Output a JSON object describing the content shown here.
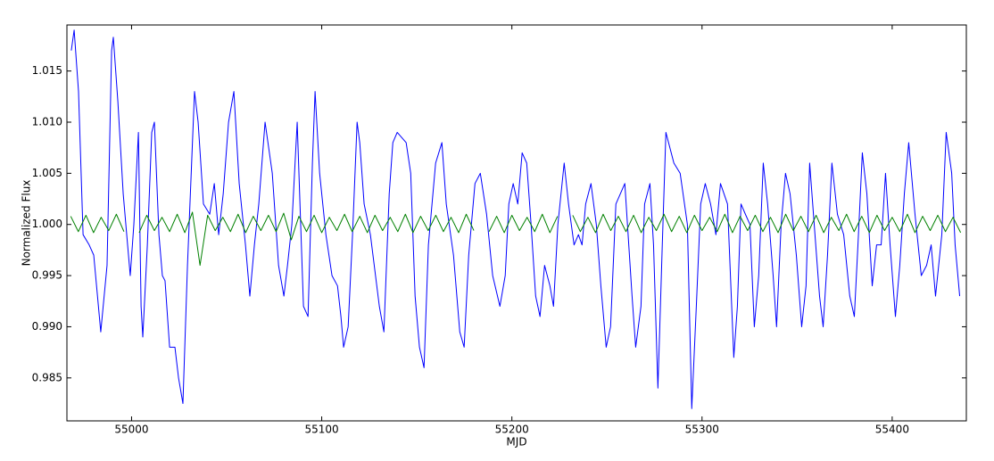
{
  "chart_data": {
    "type": "line",
    "xlabel": "MJD",
    "ylabel": "Normalized Flux",
    "xlim": [
      54966,
      55439
    ],
    "ylim": [
      0.9808,
      1.0195
    ],
    "xticks": [
      55000,
      55100,
      55200,
      55300,
      55400
    ],
    "yticks": [
      0.985,
      {
        "value": 0.99,
        "label": "0.990"
      },
      0.995,
      {
        "value": 1.0,
        "label": "1.000"
      },
      1.005,
      {
        "value": 1.01,
        "label": "1.010"
      },
      1.015
    ],
    "grid": false,
    "series": [
      {
        "color": "#0000ff",
        "x": [
          54968.3,
          54969.8,
          54972.1,
          54974.5,
          54977.7,
          54980.1,
          54983.8,
          54987.1,
          54989.5,
          54990.4,
          54992.8,
          54995.6,
          54999.3,
          55001.2,
          55003.6,
          55005.0,
          55005.9,
          55008.3,
          55010.6,
          55012.0,
          55014.4,
          55016.2,
          55017.6,
          55020.0,
          55022.8,
          55024.7,
          55027.0,
          55029.4,
          55033.1,
          55035.0,
          55037.8,
          55041.1,
          55043.5,
          55045.8,
          55048.2,
          55051.0,
          55053.8,
          55056.6,
          55059.9,
          55062.2,
          55064.6,
          55066.9,
          55070.2,
          55074.0,
          55077.3,
          55080.1,
          55082.0,
          55084.3,
          55087.1,
          55090.4,
          55092.8,
          55095.1,
          55096.5,
          55098.9,
          55102.2,
          55105.4,
          55108.3,
          55110.1,
          55111.5,
          55113.9,
          55116.2,
          55118.6,
          55120.0,
          55122.3,
          55125.6,
          55130.3,
          55132.7,
          55135.5,
          55137.4,
          55139.7,
          55144.4,
          55146.8,
          55149.1,
          55151.4,
          55153.8,
          55156.1,
          55159.9,
          55163.2,
          55165.5,
          55169.3,
          55172.6,
          55174.9,
          55177.3,
          55180.6,
          55183.4,
          55186.7,
          55189.9,
          55193.7,
          55196.5,
          55198.4,
          55200.7,
          55203.1,
          55205.4,
          55207.8,
          55210.1,
          55212.5,
          55214.8,
          55217.2,
          55220.0,
          55221.9,
          55224.2,
          55227.5,
          55229.8,
          55232.7,
          55235.0,
          55236.9,
          55238.8,
          55241.6,
          55244.4,
          55246.8,
          55249.6,
          55251.9,
          55254.7,
          55259.4,
          55263.2,
          55265.1,
          55267.9,
          55269.8,
          55272.6,
          55274.5,
          55276.8,
          55279.1,
          55281.0,
          55285.2,
          55288.5,
          55292.3,
          55294.6,
          55297.0,
          55299.3,
          55301.7,
          55304.5,
          55307.3,
          55309.7,
          55313.4,
          55316.7,
          55318.6,
          55320.5,
          55322.8,
          55325.2,
          55327.5,
          55329.8,
          55332.2,
          55334.5,
          55337.4,
          55339.2,
          55341.6,
          55343.9,
          55346.3,
          55349.6,
          55352.4,
          55354.7,
          55356.6,
          55359.0,
          55361.8,
          55363.7,
          55366.0,
          55368.3,
          55371.2,
          55374.5,
          55377.7,
          55380.1,
          55382.0,
          55384.3,
          55386.7,
          55389.5,
          55391.8,
          55394.2,
          55396.5,
          55398.9,
          55401.7,
          55404.0,
          55406.4,
          55408.7,
          55412.0,
          55415.3,
          55418.1,
          55420.5,
          55422.8,
          55426.1,
          55428.4,
          55431.3,
          55433.1,
          55435.5
        ],
        "values": [
          1.017,
          1.019,
          1.013,
          0.999,
          0.998,
          0.997,
          0.9895,
          0.996,
          1.017,
          1.0183,
          1.012,
          1.003,
          0.995,
          1.0,
          1.009,
          0.992,
          0.989,
          0.998,
          1.009,
          1.01,
          0.999,
          0.995,
          0.9945,
          0.988,
          0.988,
          0.985,
          0.9825,
          0.996,
          1.013,
          1.01,
          1.002,
          1.001,
          1.004,
          0.999,
          1.003,
          1.01,
          1.013,
          1.004,
          0.998,
          0.993,
          0.998,
          1.002,
          1.01,
          1.005,
          0.996,
          0.993,
          0.996,
          1.0,
          1.01,
          0.992,
          0.991,
          1.006,
          1.013,
          1.005,
          0.999,
          0.995,
          0.994,
          0.991,
          0.988,
          0.99,
          0.999,
          1.01,
          1.008,
          1.002,
          0.999,
          0.992,
          0.9895,
          1.003,
          1.008,
          1.009,
          1.008,
          1.005,
          0.993,
          0.988,
          0.986,
          0.998,
          1.006,
          1.008,
          1.002,
          0.997,
          0.9895,
          0.988,
          0.997,
          1.004,
          1.005,
          1.001,
          0.995,
          0.992,
          0.995,
          1.002,
          1.004,
          1.002,
          1.007,
          1.006,
          1.0,
          0.993,
          0.991,
          0.996,
          0.994,
          0.992,
          1.0,
          1.006,
          1.002,
          0.998,
          0.999,
          0.998,
          1.002,
          1.004,
          1.0,
          0.994,
          0.988,
          0.99,
          1.002,
          1.004,
          0.993,
          0.988,
          0.992,
          1.002,
          1.004,
          0.998,
          0.984,
          0.998,
          1.009,
          1.006,
          1.005,
          1.0,
          0.982,
          0.992,
          1.002,
          1.004,
          1.002,
          0.999,
          1.004,
          1.002,
          0.987,
          0.992,
          1.002,
          1.001,
          1.0,
          0.99,
          0.995,
          1.006,
          1.002,
          0.995,
          0.99,
          1.0,
          1.005,
          1.003,
          0.997,
          0.99,
          0.994,
          1.006,
          1.0,
          0.993,
          0.99,
          0.997,
          1.006,
          1.001,
          0.999,
          0.993,
          0.991,
          0.998,
          1.007,
          1.003,
          0.994,
          0.998,
          0.998,
          1.005,
          0.998,
          0.991,
          0.996,
          1.003,
          1.008,
          1.001,
          0.995,
          0.996,
          0.998,
          0.993,
          0.999,
          1.009,
          1.005,
          0.998,
          0.993
        ]
      },
      {
        "color": "#008000",
        "x": [
          54968,
          54972,
          54976,
          54980,
          54984,
          54988,
          54992,
          54996,
          55000,
          55004,
          55008,
          55012,
          55016,
          55020,
          55024,
          55028,
          55032,
          55036,
          55040,
          55044,
          55048,
          55052,
          55056,
          55060,
          55064,
          55068,
          55072,
          55076,
          55080,
          55084,
          55088,
          55092,
          55096,
          55100,
          55104,
          55108,
          55112,
          55116,
          55120,
          55124,
          55128,
          55132,
          55136,
          55140,
          55144,
          55148,
          55152,
          55156,
          55160,
          55164,
          55168,
          55172,
          55176,
          55180,
          55184,
          55188,
          55192,
          55196,
          55200,
          55204,
          55208,
          55212,
          55216,
          55220,
          55224,
          55228,
          55232,
          55236,
          55240,
          55244,
          55248,
          55252,
          55256,
          55260,
          55264,
          55268,
          55272,
          55276,
          55280,
          55284,
          55288,
          55292,
          55296,
          55300,
          55304,
          55308,
          55312,
          55316,
          55320,
          55324,
          55328,
          55332,
          55336,
          55340,
          55344,
          55348,
          55352,
          55356,
          55360,
          55364,
          55368,
          55372,
          55376,
          55380,
          55384,
          55388,
          55392,
          55396,
          55400,
          55404,
          55408,
          55412,
          55416,
          55420,
          55424,
          55428,
          55432,
          55436
        ],
        "values": [
          1.0008,
          0.9993,
          1.0009,
          0.9992,
          1.0007,
          0.9994,
          1.001,
          0.9993,
          null,
          0.9992,
          1.0009,
          0.9994,
          1.0007,
          0.9993,
          1.001,
          0.9992,
          1.0012,
          0.996,
          1.0009,
          0.9994,
          1.0007,
          0.9993,
          1.001,
          0.9992,
          1.0008,
          0.9994,
          1.0009,
          0.9993,
          1.0011,
          0.9985,
          1.0008,
          0.9993,
          1.0009,
          0.9992,
          1.0007,
          0.9994,
          1.001,
          0.9993,
          1.0008,
          0.9992,
          1.0009,
          0.9994,
          1.0007,
          0.9993,
          1.001,
          0.9992,
          1.0008,
          0.9994,
          1.0009,
          0.9993,
          1.0007,
          0.9992,
          1.001,
          0.9994,
          null,
          0.9993,
          1.0008,
          0.9992,
          1.0009,
          0.9994,
          1.0007,
          0.9993,
          1.001,
          0.9992,
          1.0008,
          null,
          1.0009,
          0.9993,
          1.0007,
          0.9992,
          1.001,
          0.9994,
          1.0008,
          0.9993,
          1.0009,
          0.9992,
          1.0007,
          0.9994,
          1.001,
          0.9993,
          1.0008,
          0.9992,
          1.0009,
          0.9994,
          1.0007,
          0.9993,
          1.001,
          0.9992,
          1.0008,
          0.9994,
          1.0009,
          0.9993,
          1.0007,
          0.9992,
          1.001,
          0.9994,
          1.0008,
          0.9993,
          1.0009,
          0.9992,
          1.0007,
          0.9994,
          1.001,
          0.9993,
          1.0008,
          0.9992,
          1.0009,
          0.9994,
          1.0007,
          0.9993,
          1.001,
          0.9992,
          1.0008,
          0.9994,
          1.0009,
          0.9993,
          1.0007,
          0.9992
        ]
      }
    ]
  }
}
